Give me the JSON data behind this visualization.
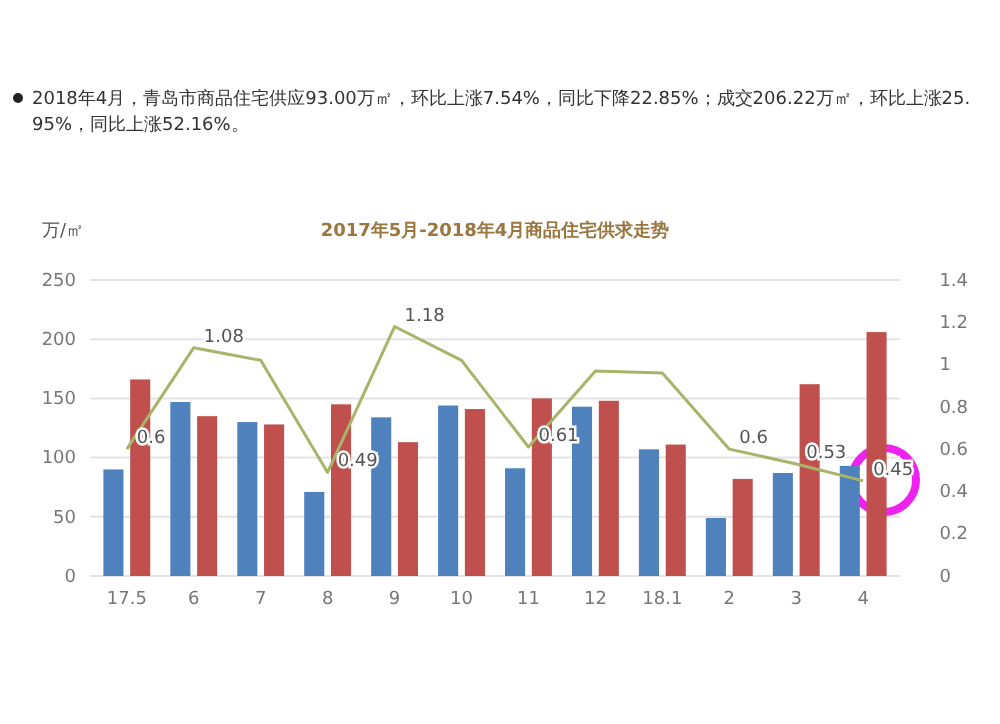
{
  "chart_data": {
    "type": "bar",
    "title": "2017年5月-2018年4月商品住宅供求走势",
    "ylabel": "万/㎡",
    "annotations": [
      "2018年4月，青岛市商品住宅供应93.00万㎡，环比上涨7.54%，同比下降22.85%；成交206.22万㎡，环比上涨25.95%，同比上涨52.16%。"
    ],
    "categories": [
      "17.5",
      "6",
      "7",
      "8",
      "9",
      "10",
      "11",
      "12",
      "18.1",
      "2",
      "3",
      "4"
    ],
    "series": [
      {
        "color": "#4f81bd",
        "values": [
          90,
          147,
          130,
          71,
          134,
          144,
          91,
          143,
          107,
          49,
          87,
          93
        ]
      },
      {
        "color": "#c0504d",
        "values": [
          166,
          135,
          128,
          145,
          113,
          141,
          150,
          148,
          111,
          82,
          162,
          206
        ]
      },
      {
        "type": "line",
        "axis": "y2",
        "color": "#a9b46a",
        "values": [
          0.6,
          1.08,
          1.02,
          0.49,
          1.18,
          1.02,
          0.61,
          0.97,
          0.96,
          0.6,
          0.53,
          0.45
        ],
        "value_labels": [
          "0.6",
          "1.08",
          null,
          "0.49",
          "1.18",
          null,
          "0.61",
          null,
          null,
          "0.6",
          "0.53",
          "0.45"
        ]
      }
    ],
    "ylim": [
      0,
      250
    ],
    "yticks": [
      0,
      50,
      100,
      150,
      200,
      250
    ],
    "y2lim": [
      0,
      1.4
    ],
    "y2ticks": [
      0,
      0.2,
      0.4,
      0.6,
      0.8,
      1,
      1.2,
      1.4
    ],
    "grid": "y"
  }
}
